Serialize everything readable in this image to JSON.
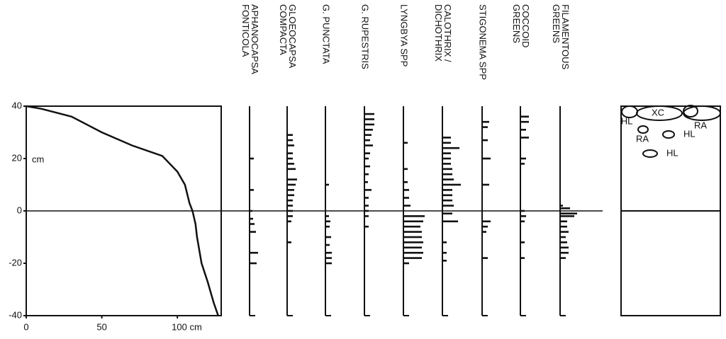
{
  "chart_data": [
    {
      "type": "line",
      "x": [
        0,
        10,
        30,
        50,
        70,
        90,
        100,
        105,
        108,
        110,
        112,
        113,
        116,
        120,
        124,
        127
      ],
      "values": [
        40,
        39,
        36,
        30,
        25,
        21,
        15,
        10,
        3,
        0,
        -5,
        -10,
        -20,
        -27,
        -35,
        -40
      ],
      "xlim": [
        0,
        129
      ],
      "ylim": [
        -40,
        40
      ],
      "xticks": [
        0,
        50,
        {
          "value": 100,
          "label": "100 cm"
        }
      ],
      "yticks": [
        -40,
        -20,
        0,
        20,
        40
      ],
      "y_label": "cm"
    },
    {
      "type": "hbar",
      "ylim": [
        -40,
        40
      ],
      "series": [
        {
          "name": "APHANOCAPSA\nFONTICOLA",
          "y": [
            20,
            8,
            0,
            -3,
            -5,
            -8,
            -16,
            -20
          ],
          "values": [
            6,
            6,
            4,
            5,
            7,
            9,
            12,
            10
          ]
        },
        {
          "name": "GLOEOCAPSA\nCOMPACTA",
          "y": [
            29,
            27,
            25,
            22,
            20,
            18,
            16,
            12,
            10,
            8,
            6,
            4,
            2,
            0,
            -2,
            -4,
            -12
          ],
          "values": [
            8,
            8,
            10,
            8,
            8,
            10,
            12,
            14,
            12,
            10,
            10,
            8,
            8,
            8,
            8,
            6,
            6
          ]
        },
        {
          "name": "G.  PUNCTATA",
          "y": [
            10,
            -2,
            -4,
            -6,
            -10,
            -13,
            -16,
            -18,
            -20
          ],
          "values": [
            5,
            5,
            7,
            6,
            8,
            6,
            9,
            9,
            9
          ]
        },
        {
          "name": "G. RUPESTRIS",
          "y": [
            37,
            35,
            33,
            31,
            29,
            27,
            25,
            22,
            20,
            17,
            14,
            11,
            8,
            5,
            2,
            0,
            -2,
            -6
          ],
          "values": [
            14,
            14,
            14,
            12,
            10,
            8,
            12,
            8,
            6,
            8,
            6,
            5,
            10,
            6,
            6,
            6,
            6,
            6
          ]
        },
        {
          "name": "LYNGBYA  SPP",
          "y": [
            26,
            16,
            11,
            8,
            5,
            2,
            -2,
            -4,
            -6,
            -8,
            -10,
            -12,
            -14,
            -16,
            -18,
            -20
          ],
          "values": [
            6,
            6,
            6,
            8,
            8,
            10,
            30,
            28,
            24,
            26,
            26,
            28,
            26,
            28,
            26,
            8
          ]
        },
        {
          "name": "CALOTHRIX /\nDICHOTHRIX",
          "y": [
            28,
            26,
            24,
            22,
            20,
            18,
            16,
            14,
            12,
            10,
            8,
            6,
            4,
            2,
            -1,
            -4,
            -12,
            -16,
            -19
          ],
          "values": [
            12,
            12,
            24,
            12,
            12,
            12,
            14,
            14,
            16,
            26,
            14,
            14,
            14,
            16,
            14,
            22,
            6,
            6,
            6
          ]
        },
        {
          "name": "STIGONEMA SPP",
          "y": [
            34,
            32,
            27,
            20,
            10,
            -4,
            -6,
            -8,
            -18
          ],
          "values": [
            10,
            8,
            8,
            12,
            10,
            12,
            8,
            6,
            8
          ]
        },
        {
          "name": "COCCOID\nGREENS",
          "y": [
            36,
            34,
            31,
            28,
            20,
            18,
            0,
            -2,
            -4,
            -12,
            -18
          ],
          "values": [
            12,
            12,
            8,
            12,
            8,
            6,
            6,
            8,
            6,
            6,
            6
          ]
        },
        {
          "name": "FILAMENTOUS\nGREENS",
          "y": [
            2,
            1,
            -1,
            -2,
            -4,
            -6,
            -8,
            -10,
            -12,
            -14,
            -16,
            -18
          ],
          "values": [
            4,
            14,
            24,
            20,
            10,
            10,
            12,
            8,
            10,
            12,
            12,
            8
          ]
        }
      ]
    },
    {
      "type": "schematic",
      "labels": [
        "HL",
        "XC",
        "RA",
        "RA",
        "HL",
        "HL"
      ]
    }
  ]
}
